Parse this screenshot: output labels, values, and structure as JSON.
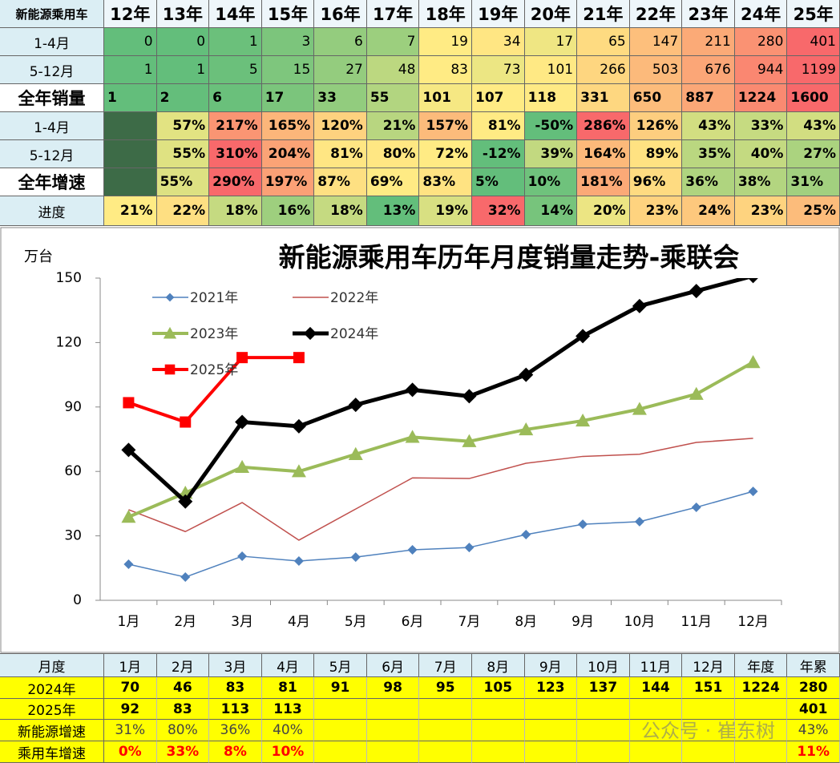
{
  "top_table": {
    "header": [
      "新能源乘用车",
      "12年",
      "13年",
      "14年",
      "15年",
      "16年",
      "17年",
      "18年",
      "19年",
      "20年",
      "21年",
      "22年",
      "23年",
      "24年",
      "25年"
    ],
    "rows": [
      {
        "label": "1-4月",
        "cells": [
          "0",
          "0",
          "1",
          "3",
          "6",
          "7",
          "19",
          "34",
          "17",
          "65",
          "147",
          "211",
          "280",
          "401"
        ]
      },
      {
        "label": "5-12月",
        "cells": [
          "1",
          "1",
          "5",
          "15",
          "27",
          "48",
          "83",
          "73",
          "101",
          "266",
          "503",
          "676",
          "944",
          "1199"
        ]
      },
      {
        "label": "全年销量",
        "cells": [
          "1",
          "2",
          "6",
          "17",
          "33",
          "55",
          "101",
          "107",
          "118",
          "331",
          "650",
          "887",
          "1224",
          "1600"
        ]
      },
      {
        "label": "1-4月",
        "cells": [
          null,
          "57%",
          "217%",
          "165%",
          "120%",
          "21%",
          "157%",
          "81%",
          "-50%",
          "286%",
          "126%",
          "43%",
          "33%",
          "43%"
        ]
      },
      {
        "label": "5-12月",
        "cells": [
          null,
          "55%",
          "310%",
          "204%",
          "81%",
          "80%",
          "72%",
          "-12%",
          "39%",
          "164%",
          "89%",
          "35%",
          "40%",
          "27%"
        ]
      },
      {
        "label": "全年增速",
        "cells": [
          null,
          "55%",
          "290%",
          "197%",
          "87%",
          "69%",
          "83%",
          "5%",
          "10%",
          "181%",
          "96%",
          "36%",
          "38%",
          "31%"
        ]
      },
      {
        "label": "进度",
        "cells": [
          "21%",
          "22%",
          "18%",
          "16%",
          "18%",
          "13%",
          "19%",
          "32%",
          "14%",
          "20%",
          "23%",
          "24%",
          "23%",
          "25%"
        ]
      }
    ]
  },
  "chart_data": {
    "type": "line",
    "title": "新能源乘用车历年月度销量走势-乘联会",
    "y_label": "万台",
    "categories": [
      "1月",
      "2月",
      "3月",
      "4月",
      "5月",
      "6月",
      "7月",
      "8月",
      "9月",
      "10月",
      "11月",
      "12月"
    ],
    "ylim": [
      0,
      150
    ],
    "yticks": [
      0,
      30,
      60,
      90,
      120,
      150
    ],
    "series": [
      {
        "name": "2021年",
        "color": "#4f81bd",
        "width": 1.5,
        "marker": "diamond",
        "marker_size": 6,
        "values": [
          16.8,
          10.8,
          20.5,
          18.3,
          20.1,
          23.5,
          24.6,
          30.6,
          35.4,
          36.6,
          43.3,
          50.7
        ]
      },
      {
        "name": "2022年",
        "color": "#c0504d",
        "width": 1.5,
        "marker": "none",
        "marker_size": 0,
        "values": [
          42.2,
          32,
          45.5,
          28,
          42.5,
          57,
          56.7,
          63.8,
          67,
          68,
          73.5,
          75.4
        ]
      },
      {
        "name": "2023年",
        "color": "#9bbb59",
        "width": 4,
        "marker": "triangle",
        "marker_size": 9,
        "values": [
          38.8,
          50,
          62,
          60,
          68,
          76,
          74,
          79.5,
          83.6,
          89,
          96,
          110.8
        ]
      },
      {
        "name": "2024年",
        "color": "#000000",
        "width": 5,
        "marker": "diamond",
        "marker_size": 9,
        "values": [
          70,
          46,
          83,
          81,
          91,
          98,
          95,
          105,
          123,
          137,
          144,
          151
        ]
      },
      {
        "name": "2025年",
        "color": "#ff0000",
        "width": 4,
        "marker": "square",
        "marker_size": 7,
        "values": [
          92,
          83,
          113,
          113,
          null,
          null,
          null,
          null,
          null,
          null,
          null,
          null
        ]
      }
    ]
  },
  "bottom_table": {
    "header": [
      "月度",
      "1月",
      "2月",
      "3月",
      "4月",
      "5月",
      "6月",
      "7月",
      "8月",
      "9月",
      "10月",
      "11月",
      "12月",
      "年度",
      "年累"
    ],
    "rows": [
      {
        "label": "2024年",
        "cells": [
          "70",
          "46",
          "83",
          "81",
          "91",
          "98",
          "95",
          "105",
          "123",
          "137",
          "144",
          "151",
          "1224",
          "280"
        ]
      },
      {
        "label": "2025年",
        "cells": [
          "92",
          "83",
          "113",
          "113",
          null,
          null,
          null,
          null,
          null,
          null,
          null,
          null,
          null,
          "401"
        ]
      },
      {
        "label": "新能源增速",
        "cells": [
          "31%",
          "80%",
          "36%",
          "40%",
          null,
          null,
          null,
          null,
          null,
          null,
          null,
          null,
          null,
          "43%"
        ]
      },
      {
        "label": "乘用车增速",
        "cells": [
          "0%",
          "33%",
          "8%",
          "10%",
          null,
          null,
          null,
          null,
          null,
          null,
          null,
          null,
          null,
          "11%"
        ]
      }
    ]
  },
  "watermark": "公众号 · 崔东树"
}
